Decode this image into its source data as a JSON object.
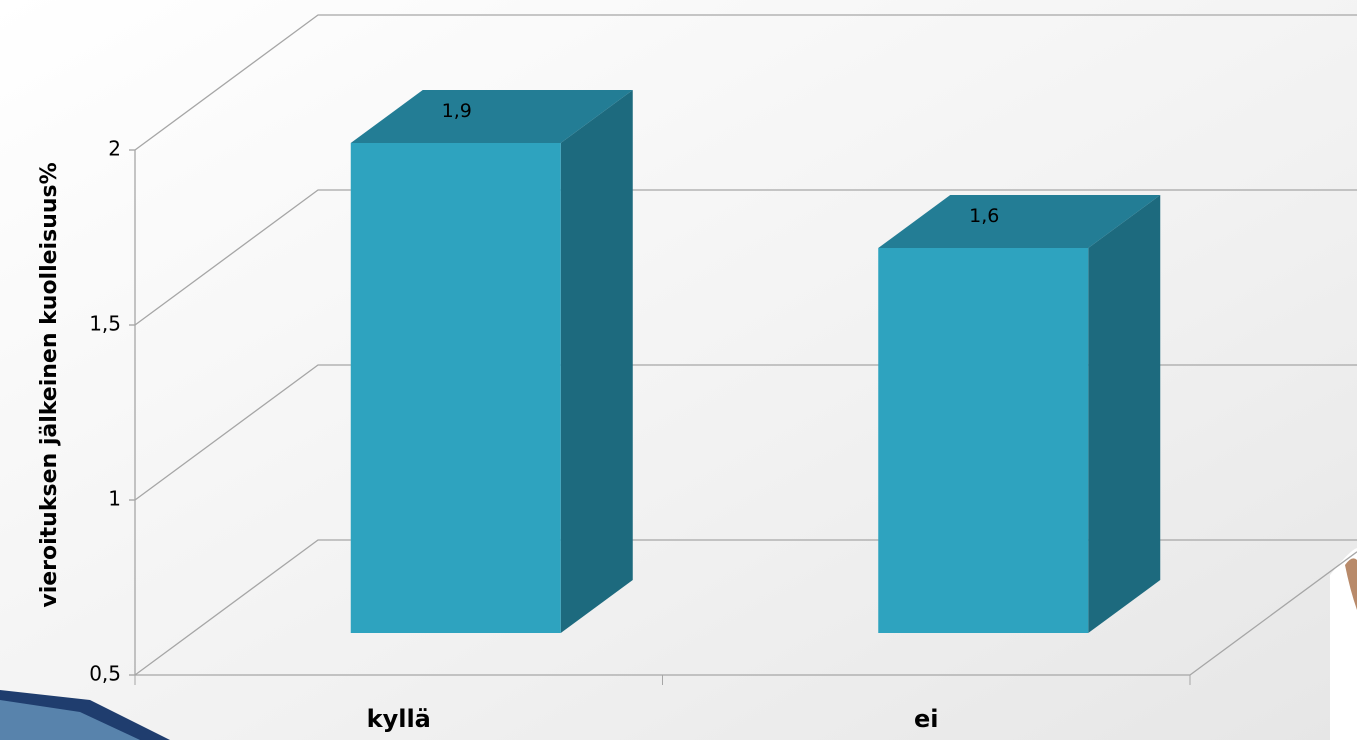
{
  "chart_data": {
    "type": "bar3d",
    "y_label": "vieroituksen jälkeinen kuolleisuus%",
    "categories": [
      "kyllä",
      "ei"
    ],
    "values": [
      1.9,
      1.6
    ],
    "value_labels": [
      "1,9",
      "1,6"
    ],
    "color": "#2ea3bf",
    "ylim": [
      0.5,
      2
    ],
    "yticks": [
      {
        "value": 0.5,
        "label": "0,5"
      },
      1,
      {
        "value": 1.5,
        "label": "1,5"
      },
      2
    ],
    "grid": true
  }
}
